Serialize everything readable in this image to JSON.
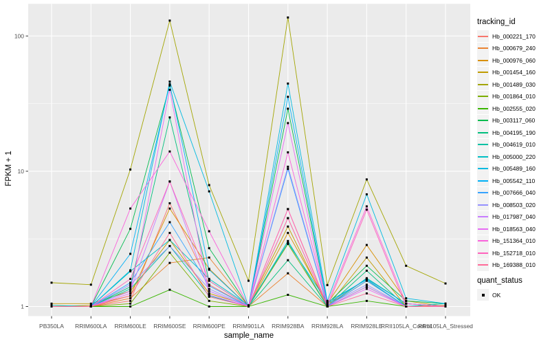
{
  "chart_data": {
    "type": "line",
    "title": "",
    "xlabel": "sample_name",
    "ylabel": "FPKM + 1",
    "y_scale": "log10",
    "y_ticks": [
      1,
      10,
      100
    ],
    "y_tick_labels": [
      "1",
      "10",
      "100"
    ],
    "ylim": [
      0.85,
      173
    ],
    "grid": "white major gridlines at 1/10/100 and category positions, minor log gridlines, grey panel",
    "legend_position": "right",
    "point_marker": "small filled black square on every data point",
    "categories": [
      "PB350LA",
      "RRIM600LA",
      "RRIM600LE",
      "RRIM600SE",
      "RRIM600PE",
      "RRIM901LA",
      "RRIM928BA",
      "RRIM928LA",
      "RRIM928LE",
      "RRII105LA_Control",
      "RRII105LA_Stressed"
    ],
    "series": [
      {
        "name": "Hb_000221_170",
        "color": "#F8766D",
        "values": [
          1.0,
          1.0,
          1.1,
          5.8,
          1.45,
          1.0,
          5.25,
          1.02,
          1.6,
          1.05,
          1.0
        ]
      },
      {
        "name": "Hb_000679_240",
        "color": "#EA8331",
        "values": [
          1.0,
          1.0,
          1.15,
          2.1,
          2.3,
          1.0,
          1.76,
          1.0,
          1.55,
          1.0,
          1.02
        ]
      },
      {
        "name": "Hb_000976_060",
        "color": "#D89000",
        "values": [
          1.0,
          1.02,
          1.2,
          5.3,
          1.9,
          1.0,
          3.5,
          1.05,
          2.85,
          1.1,
          1.0
        ]
      },
      {
        "name": "Hb_001454_160",
        "color": "#C09B00",
        "values": [
          1.05,
          1.05,
          1.3,
          3.1,
          1.25,
          1.02,
          3.9,
          1.0,
          2.3,
          1.0,
          1.0
        ]
      },
      {
        "name": "Hb_001489_030",
        "color": "#A3A500",
        "values": [
          1.5,
          1.45,
          10.3,
          130,
          7.9,
          1.55,
          137,
          1.44,
          8.7,
          2.0,
          1.48
        ]
      },
      {
        "name": "Hb_001864_010",
        "color": "#7CAE00",
        "values": [
          1.0,
          1.0,
          1.05,
          2.5,
          1.1,
          1.0,
          2.9,
          1.0,
          1.4,
          1.0,
          1.0
        ]
      },
      {
        "name": "Hb_002555_020",
        "color": "#39B600",
        "values": [
          1.0,
          1.0,
          1.0,
          1.33,
          1.0,
          1.0,
          1.22,
          1.0,
          1.1,
          1.0,
          1.0
        ]
      },
      {
        "name": "Hb_003117_060",
        "color": "#00BB4E",
        "values": [
          1.0,
          1.0,
          3.75,
          43,
          2.7,
          1.0,
          29.0,
          1.05,
          2.0,
          1.1,
          1.05
        ]
      },
      {
        "name": "Hb_004195_190",
        "color": "#00BF7D",
        "values": [
          1.0,
          1.0,
          1.4,
          25,
          1.55,
          1.0,
          2.2,
          1.0,
          1.84,
          1.0,
          1.0
        ]
      },
      {
        "name": "Hb_004619_010",
        "color": "#00C1A3",
        "values": [
          1.0,
          1.0,
          1.35,
          2.8,
          1.2,
          1.0,
          3.05,
          1.0,
          1.62,
          1.05,
          1.0
        ]
      },
      {
        "name": "Hb_005000_220",
        "color": "#00BFC4",
        "values": [
          1.02,
          1.0,
          1.82,
          3.1,
          1.6,
          1.02,
          2.95,
          1.08,
          1.58,
          1.0,
          1.05
        ]
      },
      {
        "name": "Hb_005489_160",
        "color": "#00BAE0",
        "values": [
          1.0,
          1.0,
          1.85,
          46,
          7.1,
          1.0,
          44.5,
          1.1,
          6.75,
          1.15,
          1.05
        ]
      },
      {
        "name": "Hb_005542_110",
        "color": "#00B0F6",
        "values": [
          1.0,
          1.0,
          2.45,
          44,
          1.87,
          1.0,
          35.5,
          1.05,
          1.6,
          1.05,
          1.0
        ]
      },
      {
        "name": "Hb_007666_040",
        "color": "#35A2FF",
        "values": [
          1.0,
          1.0,
          1.5,
          4.2,
          1.42,
          1.0,
          10.4,
          1.0,
          1.55,
          1.0,
          1.0
        ]
      },
      {
        "name": "Hb_008503_020",
        "color": "#9590FF",
        "values": [
          1.0,
          1.0,
          1.45,
          2.8,
          1.35,
          1.0,
          10.8,
          1.02,
          1.45,
          1.0,
          1.0
        ]
      },
      {
        "name": "Hb_017987_040",
        "color": "#C77CFF",
        "values": [
          1.0,
          1.0,
          1.3,
          8.4,
          1.3,
          1.0,
          4.5,
          1.0,
          1.4,
          1.0,
          1.0
        ]
      },
      {
        "name": "Hb_018563_040",
        "color": "#E76BF3",
        "values": [
          1.0,
          1.0,
          1.25,
          40,
          1.22,
          1.0,
          22.7,
          1.0,
          1.35,
          1.0,
          1.0
        ]
      },
      {
        "name": "Hb_151364_010",
        "color": "#FA62DB",
        "values": [
          1.0,
          1.0,
          5.3,
          14,
          3.6,
          1.0,
          13.8,
          1.05,
          5.5,
          1.05,
          1.0
        ]
      },
      {
        "name": "Hb_152718_010",
        "color": "#FF62BC",
        "values": [
          1.0,
          1.0,
          1.6,
          8.4,
          1.55,
          1.0,
          5.25,
          1.0,
          5.2,
          1.0,
          1.0
        ]
      },
      {
        "name": "Hb_169388_010",
        "color": "#FF6A98",
        "values": [
          1.0,
          1.0,
          1.2,
          3.5,
          1.18,
          1.0,
          4.5,
          1.0,
          1.25,
          1.0,
          1.0
        ]
      }
    ],
    "legends": {
      "color": {
        "title": "tracking_id"
      },
      "shape": {
        "title": "quant_status",
        "items": [
          "OK"
        ],
        "marker": "filled-black-square"
      }
    }
  },
  "style": {
    "panel_bg": "#EBEBEB",
    "grid_color": "#FFFFFF",
    "axis_text_color": "#4D4D4D",
    "tick_color": "#333333",
    "legend_key_bg": "#F2F2F2",
    "point_color": "#000000",
    "background": "#FFFFFF"
  }
}
